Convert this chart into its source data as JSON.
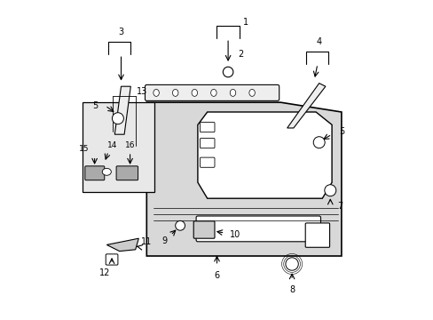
{
  "bg_color": "#ffffff",
  "line_color": "#000000",
  "gray_fill": "#d8d8d8",
  "fig_width": 4.89,
  "fig_height": 3.6,
  "dpi": 100
}
